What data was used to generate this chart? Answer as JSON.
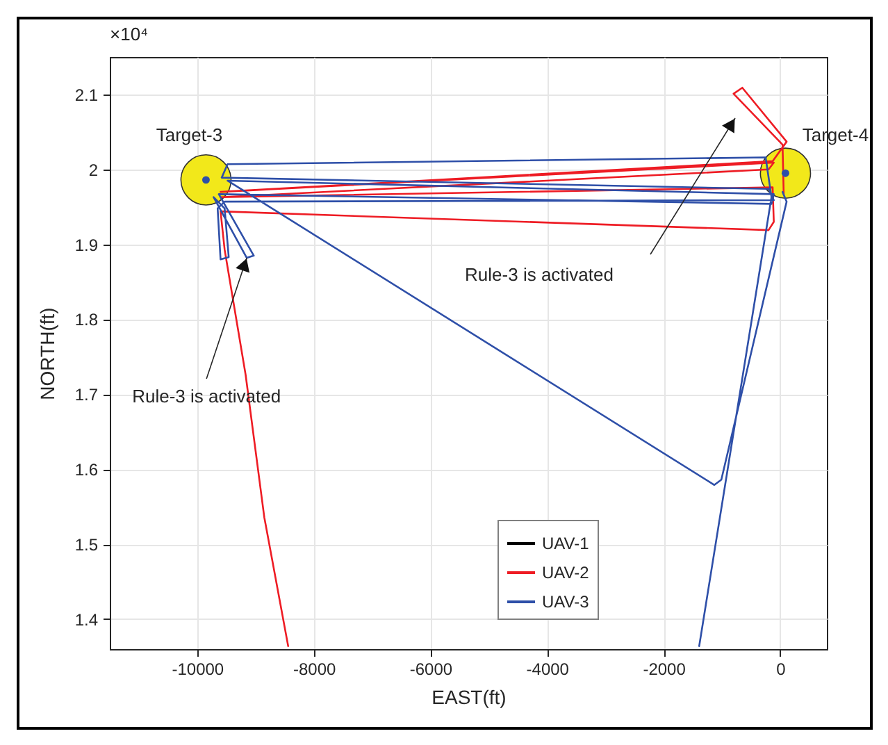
{
  "chart_data": {
    "type": "line",
    "xlabel": "EAST(ft)",
    "ylabel": "NORTH(ft)",
    "xlim": [
      -11500,
      800
    ],
    "xticks": [
      -10000,
      -8000,
      -6000,
      -4000,
      -2000,
      0
    ],
    "ylim": [
      1.36,
      2.15
    ],
    "yticks": [
      1.4,
      1.5,
      1.6,
      1.7,
      1.8,
      1.9,
      2,
      2.1
    ],
    "grid": true,
    "legend": "bottom",
    "annotations": [
      "×10⁴",
      {
        "text": "Target-3",
        "x": -9850,
        "y": 1.986
      },
      {
        "text": "Target-4",
        "x": 90,
        "y": 1.995
      },
      {
        "text": "Rule-3 is activated",
        "x": -9150,
        "y": 1.882
      },
      "Rule-3 is activated"
    ],
    "series": [
      {
        "type": "bubble",
        "color": "#f2e81a",
        "x": [
          -9850,
          90
        ],
        "values": [
          1.986,
          1.995
        ],
        "sizes": [
          1,
          1
        ]
      },
      {
        "type": "scatter",
        "color": "#2e4fa8",
        "x": [
          -9850,
          90
        ],
        "values": [
          1.986,
          1.995
        ]
      },
      {
        "name": "UAV-1",
        "type": "line",
        "color": "#000000"
      },
      {
        "name": "UAV-2",
        "type": "line",
        "color": "#ee1c24",
        "x": [
          -8440,
          -8850,
          -9170,
          -9530,
          -9600,
          -200,
          -110,
          -130,
          -9600,
          -200,
          -110,
          -9600,
          -130,
          110,
          -650,
          -800,
          40,
          60
        ],
        "values": [
          1.364,
          1.536,
          1.726,
          1.893,
          1.944,
          1.919,
          1.93,
          1.976,
          1.963,
          2.0,
          2.009,
          1.97,
          2.011,
          2.037,
          2.109,
          2.101,
          2.033,
          1.967
        ]
      },
      {
        "name": "UAV-3",
        "type": "line",
        "color": "#2e4fa8",
        "x": [
          -1390,
          -150,
          -250,
          -9480,
          -9580,
          -200,
          -110,
          -9530,
          -9650,
          -9600,
          -9460,
          -9530,
          -9720,
          -9150,
          -9030,
          -9630,
          -150,
          -110,
          -9480,
          -1130,
          -1010,
          110,
          40
        ],
        "values": [
          1.364,
          1.963,
          2.016,
          2.007,
          1.989,
          1.974,
          1.959,
          1.957,
          1.948,
          1.88,
          1.883,
          1.948,
          1.963,
          1.882,
          1.885,
          1.967,
          1.954,
          1.967,
          1.985,
          1.579,
          1.586,
          1.957,
          1.97
        ]
      }
    ]
  }
}
